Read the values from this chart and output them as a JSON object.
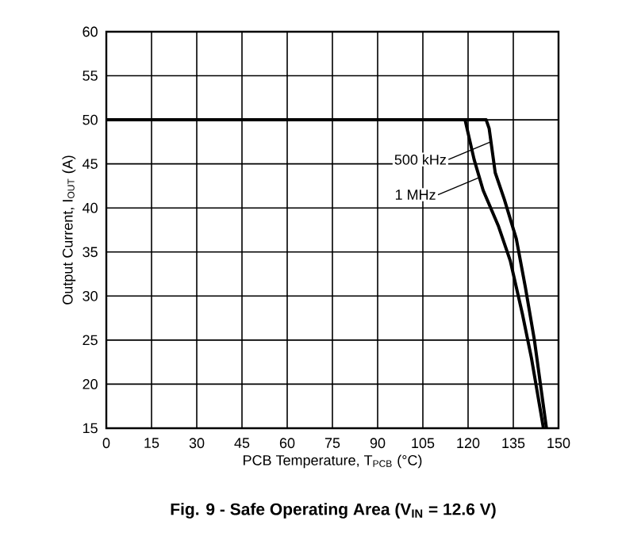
{
  "chart_data": {
    "type": "line",
    "title": "Fig. 9 - Safe Operating Area (V$_{IN}$ = 12.6 V)",
    "xlabel": "PCB Temperature, T$_{PCB}$ (°C)",
    "ylabel": "Output Current, I$_{OUT}$ (A)",
    "series": [
      {
        "color": "#000000",
        "x": [
          0,
          126,
          127,
          129,
          132,
          136,
          139,
          142,
          144,
          146
        ],
        "values": [
          50,
          50,
          49,
          44,
          41,
          36.5,
          31,
          25,
          20,
          15
        ]
      },
      {
        "color": "#000000",
        "x": [
          0,
          119,
          122,
          125,
          130,
          134,
          138,
          141,
          143,
          145
        ],
        "values": [
          50,
          50,
          45.5,
          42,
          38,
          34,
          28,
          23,
          19,
          15
        ]
      }
    ],
    "annotations": [
      {
        "text": "500 kHz",
        "x": 127.5,
        "y": 47.5
      },
      {
        "text": "1 MHz",
        "x": 124,
        "y": 43.5
      }
    ],
    "xlim": [
      0,
      150
    ],
    "ylim": [
      15,
      60
    ],
    "xticks": [
      0,
      15,
      30,
      45,
      60,
      75,
      90,
      105,
      120,
      135,
      150
    ],
    "yticks": [
      15,
      20,
      25,
      30,
      35,
      40,
      45,
      50,
      55,
      60
    ],
    "grid": true,
    "line_style": "solid",
    "marker": "none"
  }
}
